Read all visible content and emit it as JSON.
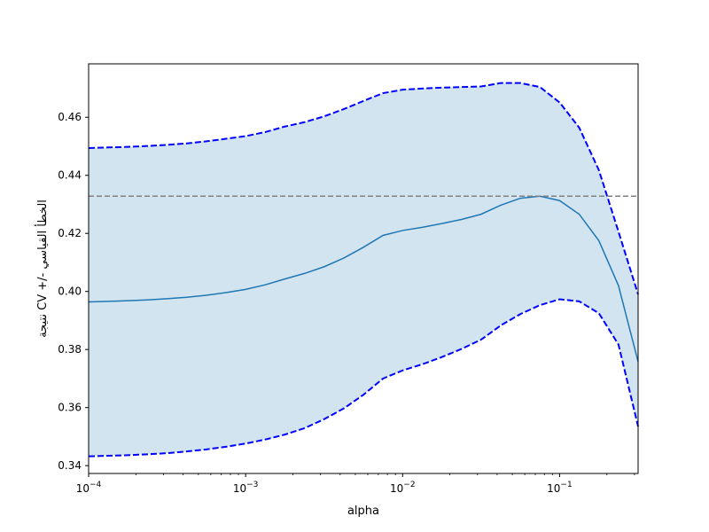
{
  "chart_data": {
    "type": "line",
    "xlabel": "alpha",
    "ylabel": "نتيجة CV +/- الخطأ القياسي",
    "xscale": "log",
    "xlim": [
      0.0001,
      0.3162
    ],
    "ylim": [
      0.3373,
      0.4784
    ],
    "grid": false,
    "xticks": [
      {
        "value": 0.0001,
        "base": "10",
        "exp": "−4"
      },
      {
        "value": 0.001,
        "base": "10",
        "exp": "−3"
      },
      {
        "value": 0.01,
        "base": "10",
        "exp": "−2"
      },
      {
        "value": 0.1,
        "base": "10",
        "exp": "−1"
      }
    ],
    "yticks": [
      {
        "value": 0.34,
        "label": "0.34"
      },
      {
        "value": 0.36,
        "label": "0.36"
      },
      {
        "value": 0.38,
        "label": "0.38"
      },
      {
        "value": 0.4,
        "label": "0.40"
      },
      {
        "value": 0.42,
        "label": "0.42"
      },
      {
        "value": 0.44,
        "label": "0.44"
      },
      {
        "value": 0.46,
        "label": "0.46"
      }
    ],
    "x": [
      0.0001,
      0.000133,
      0.000178,
      0.000237,
      0.000316,
      0.000422,
      0.000562,
      0.00075,
      0.001,
      0.001334,
      0.001778,
      0.002371,
      0.003162,
      0.004217,
      0.005623,
      0.007499,
      0.01,
      0.013335,
      0.017783,
      0.023714,
      0.031623,
      0.04217,
      0.056234,
      0.074989,
      0.1,
      0.133352,
      0.177828,
      0.237137,
      0.316228
    ],
    "series": [
      {
        "role": "mean",
        "color": "#1f77b4",
        "style": "solid",
        "values": [
          0.3964,
          0.3966,
          0.3968,
          0.3971,
          0.3975,
          0.398,
          0.3987,
          0.3996,
          0.4007,
          0.4023,
          0.4043,
          0.4062,
          0.4085,
          0.4115,
          0.4152,
          0.4193,
          0.421,
          0.4221,
          0.4234,
          0.4248,
          0.4266,
          0.4297,
          0.4321,
          0.4328,
          0.4313,
          0.4266,
          0.4175,
          0.402,
          0.3758
        ]
      },
      {
        "role": "upper",
        "color": "#0000ff",
        "style": "dashed",
        "values": [
          0.4494,
          0.4496,
          0.4498,
          0.4501,
          0.4505,
          0.451,
          0.4517,
          0.4526,
          0.4535,
          0.4549,
          0.4568,
          0.4583,
          0.4603,
          0.4628,
          0.4656,
          0.4683,
          0.4695,
          0.4699,
          0.4702,
          0.4704,
          0.4706,
          0.4718,
          0.4718,
          0.4704,
          0.4651,
          0.4564,
          0.4418,
          0.4206,
          0.399
        ]
      },
      {
        "role": "lower",
        "color": "#0000ff",
        "style": "dashed",
        "values": [
          0.3432,
          0.3434,
          0.3436,
          0.3439,
          0.3443,
          0.3449,
          0.3456,
          0.3465,
          0.3476,
          0.349,
          0.3507,
          0.3529,
          0.356,
          0.3597,
          0.3644,
          0.37,
          0.3728,
          0.3749,
          0.3774,
          0.3802,
          0.3834,
          0.3883,
          0.3922,
          0.3953,
          0.3973,
          0.3966,
          0.3925,
          0.3817,
          0.3535
        ]
      }
    ],
    "band": {
      "between": [
        "lower",
        "upper"
      ],
      "color": "#1f77b4",
      "opacity": 0.2
    },
    "hline": {
      "y": 0.4328,
      "color": "#808080",
      "style": "dashed"
    }
  }
}
